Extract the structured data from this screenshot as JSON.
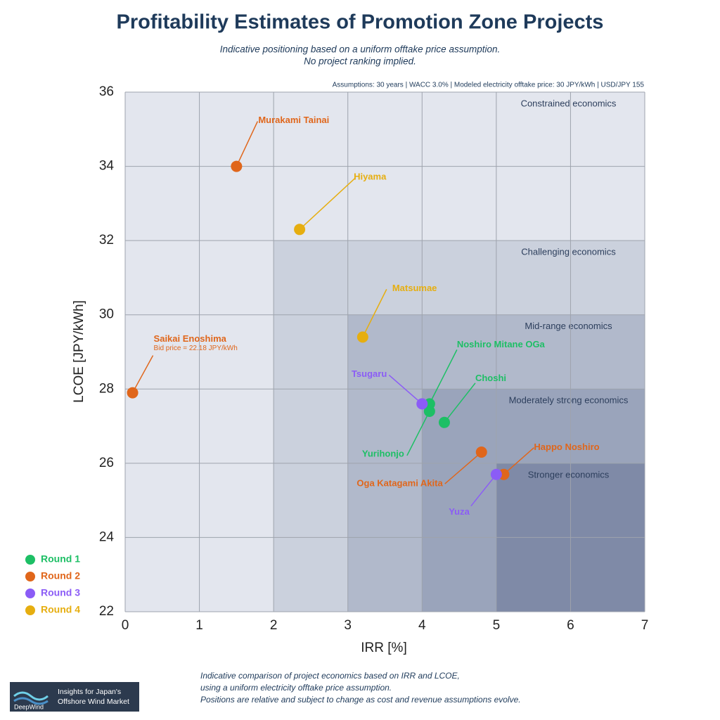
{
  "chart_data": {
    "type": "scatter",
    "title": "Profitability Estimates of Promotion Zone Projects",
    "subtitle": [
      "Indicative positioning based on a uniform offtake price assumption.",
      "No project ranking implied."
    ],
    "assumptions": "Assumptions: 30 years | WACC 3.0% | Modeled electricity offtake price: 30 JPY/kWh | USD/JPY 155",
    "x_label": "IRR [%]",
    "y_label": "LCOE [JPY/kWh]",
    "xlim": [
      0,
      7
    ],
    "xticks": [
      0,
      1,
      2,
      3,
      4,
      5,
      6,
      7
    ],
    "ylim": [
      22,
      36
    ],
    "yticks": [
      22,
      24,
      26,
      28,
      30,
      32,
      34,
      36
    ],
    "grid": true,
    "legend": "lower left",
    "zones": [
      {
        "label": "Constrained economics",
        "xlim": [
          0,
          7
        ],
        "ylim": [
          22,
          36
        ],
        "color": "#e3e6ee"
      },
      {
        "label": "Challenging economics",
        "xlim": [
          2,
          7
        ],
        "ylim": [
          22,
          32
        ],
        "color": "#cbd1dd"
      },
      {
        "label": "Mid-range economics",
        "xlim": [
          3,
          7
        ],
        "ylim": [
          22,
          30
        ],
        "color": "#b1b9cb"
      },
      {
        "label": "Moderately strong economics",
        "xlim": [
          4,
          7
        ],
        "ylim": [
          22,
          28
        ],
        "color": "#9aa4bb"
      },
      {
        "label": "Stronger economics",
        "xlim": [
          5,
          7
        ],
        "ylim": [
          22,
          26
        ],
        "color": "#7f8aa7"
      }
    ],
    "series": [
      {
        "name": "Round 1",
        "color": "#1dbf65",
        "labels": [
          "Noshiro Mitane OGa",
          "Yurihonjo",
          "Choshi"
        ],
        "x": [
          4.1,
          4.1,
          4.3
        ],
        "values": [
          27.6,
          27.4,
          27.1
        ]
      },
      {
        "name": "Round 2",
        "color": "#e0661b",
        "labels": [
          "Murakami Tainai",
          "Saikai Enoshima",
          "Oga Katagami Akita",
          "Happo Noshiro"
        ],
        "notes": [
          null,
          "Bid price = 22.18 JPY/kWh",
          null,
          null
        ],
        "x": [
          1.5,
          0.1,
          4.8,
          5.1
        ],
        "values": [
          34.0,
          27.9,
          26.3,
          25.7
        ]
      },
      {
        "name": "Round 3",
        "color": "#8b5cf6",
        "labels": [
          "Tsugaru",
          "Yuza"
        ],
        "x": [
          4.0,
          5.0
        ],
        "values": [
          27.6,
          25.7
        ]
      },
      {
        "name": "Round 4",
        "color": "#e6ae10",
        "labels": [
          "Hiyama",
          "Matsumae"
        ],
        "x": [
          2.35,
          3.2
        ],
        "values": [
          32.3,
          29.4
        ]
      }
    ],
    "footnote": [
      "Indicative comparison of project economics based on IRR and LCOE,",
      "using a uniform electricity offtake price assumption.",
      "Positions are relative and subject to change as cost and revenue assumptions evolve."
    ],
    "logo": {
      "tagline": [
        "Insights for Japan's",
        "Offshore Wind Market"
      ],
      "brand": "DeepWind"
    }
  }
}
